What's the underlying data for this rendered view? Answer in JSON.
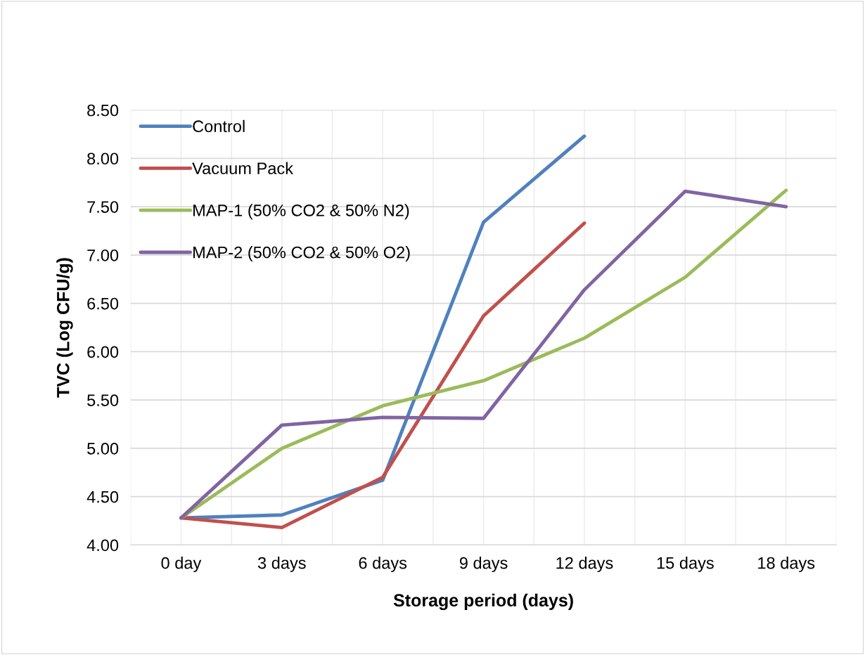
{
  "chart_data": {
    "type": "line",
    "xlabel": "Storage period (days)",
    "ylabel": "TVC (Log CFU/g)",
    "categories": [
      "0 day",
      "3 days",
      "6 days",
      "9 days",
      "12 days",
      "15 days",
      "18 days"
    ],
    "series": [
      {
        "name": "Control",
        "color": "#4f81bd",
        "values": [
          4.28,
          4.31,
          4.67,
          7.34,
          8.23,
          null,
          null
        ]
      },
      {
        "name": "Vacuum Pack",
        "color": "#c0504d",
        "values": [
          4.28,
          4.18,
          4.7,
          6.37,
          7.33,
          null,
          null
        ]
      },
      {
        "name": "MAP-1 (50% CO2 & 50% N2)",
        "color": "#9bbb59",
        "values": [
          4.28,
          5.0,
          5.44,
          5.7,
          6.14,
          6.77,
          7.67
        ]
      },
      {
        "name": "MAP-2 (50% CO2 & 50% O2)",
        "color": "#8064a2",
        "values": [
          4.28,
          5.24,
          5.32,
          5.31,
          6.64,
          7.66,
          7.5
        ]
      }
    ],
    "ylim": [
      4.0,
      8.5
    ],
    "yticks": [
      {
        "value": 4.0,
        "label": "4.00"
      },
      {
        "value": 4.5,
        "label": "4.50"
      },
      {
        "value": 5.0,
        "label": "5.00"
      },
      {
        "value": 5.5,
        "label": "5.50"
      },
      {
        "value": 6.0,
        "label": "6.00"
      },
      {
        "value": 6.5,
        "label": "6.50"
      },
      {
        "value": 7.0,
        "label": "7.00"
      },
      {
        "value": 7.5,
        "label": "7.50"
      },
      {
        "value": 8.0,
        "label": "8.00"
      },
      {
        "value": 8.5,
        "label": "8.50"
      }
    ],
    "grid": true,
    "legend": "top left",
    "marker": "none",
    "line_style": "solid"
  }
}
